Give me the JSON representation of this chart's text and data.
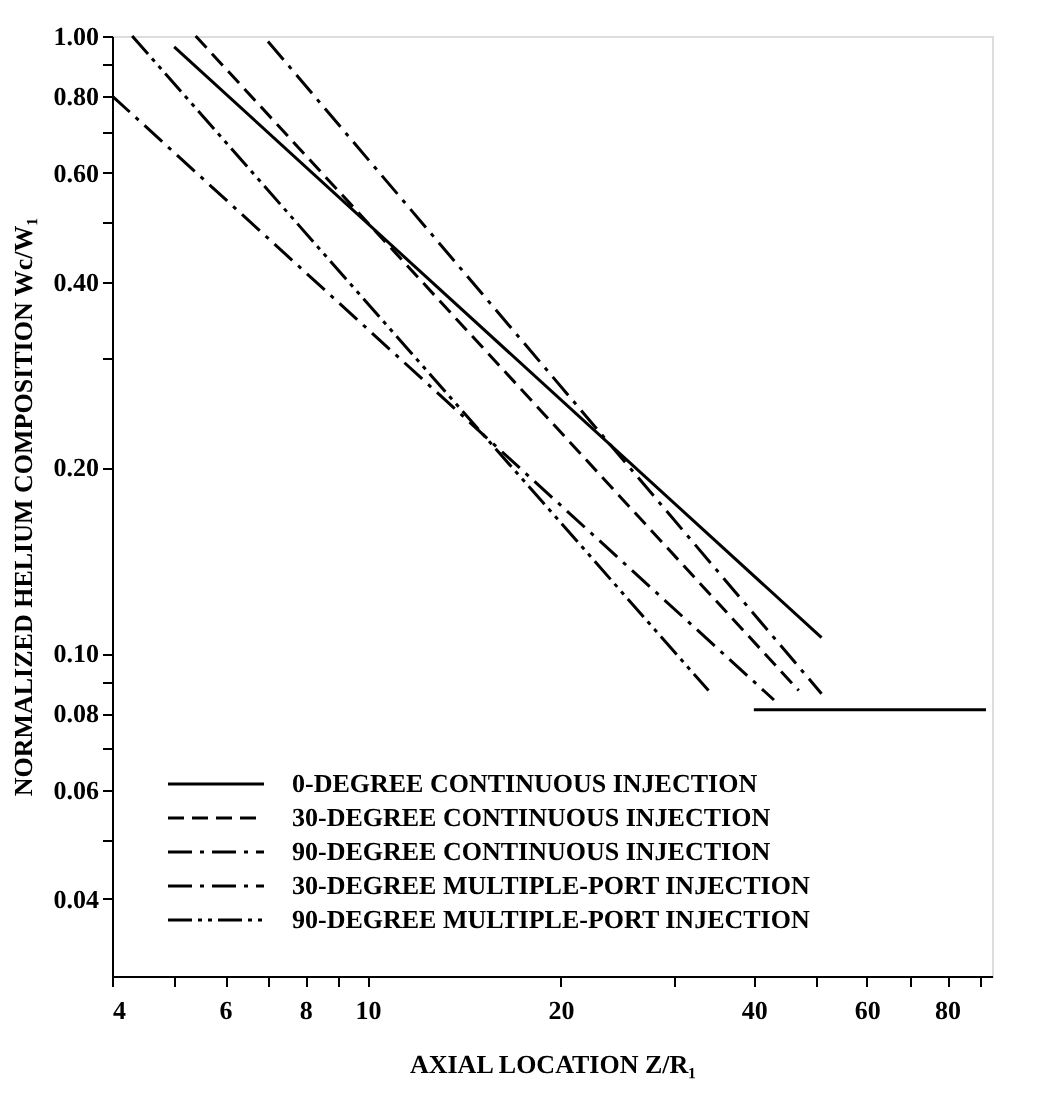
{
  "chart_data": {
    "type": "line",
    "xlabel": "AXIAL LOCATION Z/R₁",
    "ylabel": "NORMALIZED HELIUM COMPOSITION Wc/W₁",
    "log": "xy",
    "grid": false,
    "legend": "bottom left",
    "marker": "none",
    "xlim": [
      4,
      94
    ],
    "xticks": [
      4,
      {
        "value": 5,
        "label": null
      },
      6,
      {
        "value": 7,
        "label": null
      },
      8,
      {
        "value": 9,
        "label": null
      },
      10,
      20,
      {
        "value": 30,
        "label": null
      },
      40,
      {
        "value": 50,
        "label": null
      },
      60,
      {
        "value": 70,
        "label": null
      },
      80,
      {
        "value": 90,
        "label": null
      }
    ],
    "ylim": [
      0.03,
      1.0
    ],
    "yticks": [
      {
        "value": 0.04,
        "label": "0.04"
      },
      {
        "value": 0.05,
        "label": null
      },
      {
        "value": 0.06,
        "label": "0.06"
      },
      {
        "value": 0.07,
        "label": null
      },
      {
        "value": 0.08,
        "label": "0.08"
      },
      {
        "value": 0.09,
        "label": null
      },
      {
        "value": 0.1,
        "label": "0.10"
      },
      {
        "value": 0.2,
        "label": "0.20"
      },
      {
        "value": 0.3,
        "label": null
      },
      {
        "value": 0.4,
        "label": "0.40"
      },
      {
        "value": 0.5,
        "label": null
      },
      {
        "value": 0.6,
        "label": "0.60"
      },
      {
        "value": 0.7,
        "label": null
      },
      {
        "value": 0.8,
        "label": "0.80"
      },
      {
        "value": 0.9,
        "label": null
      },
      {
        "value": 1.0,
        "label": "1.00"
      }
    ],
    "series": [
      {
        "name": "0-DEGREE CONTINUOUS INJECTION",
        "color": "#000000",
        "line_style": "solid",
        "x": [
          5.0,
          51
        ],
        "values": [
          0.96,
          0.106
        ]
      },
      {
        "name": "30-DEGREE CONTINUOUS INJECTION",
        "color": "#000000",
        "line_style": "dashed",
        "x": [
          5.4,
          47
        ],
        "values": [
          1.0,
          0.087
        ]
      },
      {
        "name": "90-DEGREE CONTINUOUS INJECTION",
        "color": "#000000",
        "line_style": "dashdot",
        "x": [
          7.0,
          51
        ],
        "values": [
          0.98,
          0.086
        ]
      },
      {
        "name": "30-DEGREE MULTIPLE-PORT INJECTION",
        "color": "#000000",
        "line_style": "dashdot",
        "x": [
          4.0,
          43
        ],
        "values": [
          0.8,
          0.084
        ]
      },
      {
        "name": "90-DEGREE MULTIPLE-PORT INJECTION",
        "color": "#000000",
        "line_style": "dashdotdot",
        "x": [
          4.3,
          34
        ],
        "values": [
          1.0,
          0.087
        ]
      },
      {
        "color": "#000000",
        "line_style": "solid",
        "x": [
          40,
          92
        ],
        "values": [
          0.081,
          0.081
        ]
      }
    ]
  }
}
